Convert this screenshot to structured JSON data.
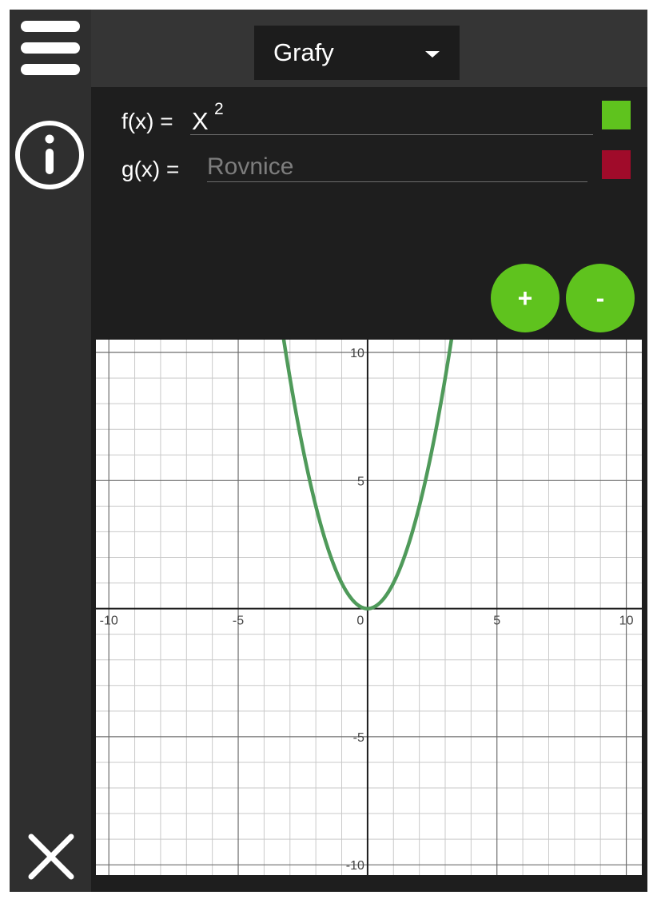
{
  "header": {
    "dropdown_label": "Grafy"
  },
  "functions": [
    {
      "label": "f(x) =",
      "value": "X",
      "superscript": "2",
      "placeholder": "",
      "color": "#5fc31e"
    },
    {
      "label": "g(x) =",
      "value": "",
      "placeholder": "Rovnice",
      "color": "#a00b2a"
    }
  ],
  "buttons": {
    "add_label": "+",
    "remove_label": "-"
  },
  "sidebar": {
    "icons": [
      "menu-icon",
      "info-icon",
      "close-icon"
    ]
  },
  "chart_data": {
    "type": "line",
    "xlim": [
      -10.5,
      10.6
    ],
    "ylim": [
      -10.4,
      10.5
    ],
    "x_ticks": [
      -10,
      -5,
      0,
      5,
      10
    ],
    "y_ticks": [
      10,
      5,
      -5,
      -10
    ],
    "x_tick_labels": [
      "-10",
      "-5",
      "0",
      "5",
      "10"
    ],
    "y_tick_labels": [
      "10",
      "5",
      "-5",
      "-10"
    ],
    "grid": true,
    "series": [
      {
        "expression": "x^2",
        "color": "#4f9a5a"
      }
    ]
  }
}
